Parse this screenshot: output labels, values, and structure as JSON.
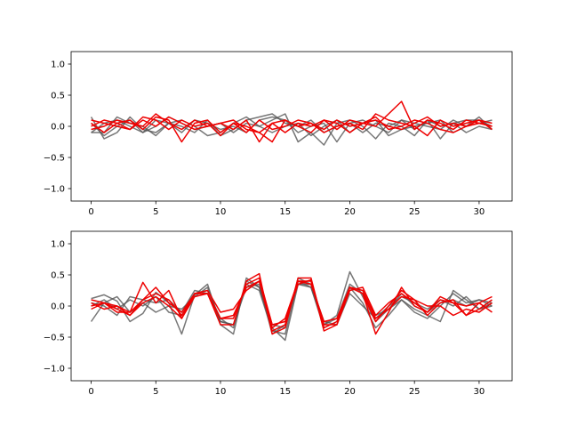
{
  "colors": {
    "gray": "#555555",
    "red": "#ee0000",
    "axes": "#000000",
    "background": "#ffffff"
  },
  "chart_data": [
    {
      "type": "line",
      "title": "",
      "xlabel": "",
      "ylabel": "",
      "xlim": [
        -1.55,
        32.55
      ],
      "ylim": [
        -1.2,
        1.2
      ],
      "xticks": [
        0,
        5,
        10,
        15,
        20,
        25,
        30
      ],
      "yticks": [
        -1.0,
        -0.5,
        0.0,
        0.5,
        1.0
      ],
      "grid": false,
      "legend": "none",
      "x": [
        0,
        1,
        2,
        3,
        4,
        5,
        6,
        7,
        8,
        9,
        10,
        11,
        12,
        13,
        14,
        15,
        16,
        17,
        18,
        19,
        20,
        21,
        22,
        23,
        24,
        25,
        26,
        27,
        28,
        29,
        30,
        31
      ],
      "series": [
        {
          "color": "gray",
          "values": [
            0.15,
            -0.2,
            -0.1,
            0.15,
            -0.05,
            -0.1,
            0.05,
            0.1,
            0.0,
            -0.15,
            -0.1,
            0.05,
            0.15,
            0.0,
            0.1,
            0.2,
            -0.25,
            -0.1,
            -0.3,
            0.05,
            0.1,
            0.0,
            -0.2,
            0.05,
            0.0,
            -0.15,
            0.1,
            -0.2,
            0.05,
            0.1,
            0.1,
            0.0
          ]
        },
        {
          "color": "gray",
          "values": [
            -0.1,
            0.05,
            0.1,
            0.0,
            -0.1,
            0.1,
            0.05,
            -0.1,
            0.1,
            0.05,
            -0.05,
            0.0,
            -0.1,
            0.1,
            0.15,
            0.1,
            -0.1,
            0.0,
            0.05,
            -0.25,
            0.05,
            0.1,
            0.0,
            -0.1,
            0.1,
            0.05,
            0.0,
            -0.05,
            0.1,
            0.0,
            0.15,
            -0.05
          ]
        },
        {
          "color": "gray",
          "values": [
            0.05,
            -0.15,
            0.0,
            0.1,
            -0.1,
            0.0,
            0.15,
            0.05,
            -0.05,
            0.0,
            0.05,
            -0.1,
            0.05,
            0.0,
            -0.1,
            0.0,
            0.05,
            -0.15,
            0.0,
            0.1,
            -0.1,
            0.05,
            0.1,
            -0.15,
            -0.05,
            0.0,
            0.05,
            0.1,
            -0.1,
            0.0,
            0.05,
            0.1
          ]
        },
        {
          "color": "gray",
          "values": [
            -0.1,
            -0.1,
            0.15,
            0.05,
            0.0,
            -0.15,
            0.05,
            0.0,
            -0.1,
            0.1,
            -0.15,
            -0.05,
            0.1,
            0.15,
            0.2,
            0.05,
            0.0,
            0.1,
            -0.1,
            0.0,
            0.05,
            -0.1,
            0.05,
            0.0,
            0.1,
            -0.05,
            0.1,
            0.0,
            0.05,
            -0.1,
            0.0,
            -0.05
          ]
        },
        {
          "color": "red",
          "values": [
            0.05,
            -0.1,
            0.05,
            0.1,
            -0.05,
            0.15,
            0.1,
            -0.25,
            0.05,
            0.1,
            -0.1,
            0.05,
            0.0,
            -0.1,
            0.05,
            0.1,
            0.0,
            -0.1,
            0.1,
            -0.05,
            0.1,
            0.05,
            0.0,
            0.2,
            0.4,
            -0.05,
            0.1,
            0.05,
            -0.05,
            0.1,
            0.05,
            0.0
          ]
        },
        {
          "color": "red",
          "values": [
            0.1,
            0.05,
            0.0,
            -0.05,
            0.15,
            0.1,
            -0.05,
            0.1,
            0.0,
            0.05,
            -0.15,
            0.05,
            -0.1,
            0.1,
            -0.05,
            0.0,
            0.1,
            0.05,
            -0.1,
            0.0,
            0.05,
            -0.05,
            0.2,
            0.1,
            0.05,
            0.0,
            -0.15,
            0.1,
            0.0,
            0.05,
            0.1,
            0.05
          ]
        },
        {
          "color": "red",
          "values": [
            0.0,
            0.1,
            0.05,
            -0.05,
            0.1,
            0.0,
            0.15,
            0.05,
            -0.05,
            0.0,
            0.05,
            0.1,
            -0.05,
            -0.1,
            -0.25,
            0.1,
            0.0,
            0.05,
            -0.05,
            0.1,
            0.0,
            0.05,
            0.1,
            0.0,
            -0.05,
            0.05,
            0.15,
            0.0,
            0.05,
            0.0,
            0.1,
            -0.05
          ]
        },
        {
          "color": "red",
          "values": [
            -0.05,
            0.0,
            0.1,
            0.05,
            0.0,
            0.2,
            0.05,
            -0.05,
            0.1,
            0.0,
            0.05,
            -0.05,
            0.1,
            -0.25,
            0.05,
            -0.1,
            0.05,
            0.0,
            0.1,
            0.05,
            -0.1,
            0.05,
            0.15,
            -0.05,
            0.0,
            0.1,
            0.05,
            -0.05,
            -0.1,
            0.0,
            0.05,
            0.0
          ]
        }
      ]
    },
    {
      "type": "line",
      "title": "",
      "xlabel": "",
      "ylabel": "",
      "xlim": [
        -1.55,
        32.55
      ],
      "ylim": [
        -1.2,
        1.2
      ],
      "xticks": [
        0,
        5,
        10,
        15,
        20,
        25,
        30
      ],
      "yticks": [
        -1.0,
        -0.5,
        0.0,
        0.5,
        1.0
      ],
      "grid": false,
      "legend": "none",
      "x": [
        0,
        1,
        2,
        3,
        4,
        5,
        6,
        7,
        8,
        9,
        10,
        11,
        12,
        13,
        14,
        15,
        16,
        17,
        18,
        19,
        20,
        21,
        22,
        23,
        24,
        25,
        26,
        27,
        28,
        29,
        30,
        31
      ],
      "series": [
        {
          "color": "gray",
          "values": [
            0.12,
            0.18,
            0.08,
            -0.25,
            -0.12,
            0.22,
            0.05,
            -0.45,
            0.18,
            0.35,
            -0.3,
            -0.45,
            0.45,
            0.3,
            -0.35,
            -0.55,
            0.35,
            0.3,
            -0.3,
            -0.15,
            0.55,
            0.15,
            -0.25,
            -0.05,
            0.1,
            -0.05,
            -0.15,
            -0.25,
            0.25,
            0.1,
            -0.05,
            0.0
          ]
        },
        {
          "color": "gray",
          "values": [
            -0.25,
            0.05,
            0.15,
            -0.1,
            0.05,
            -0.1,
            0.0,
            -0.05,
            0.15,
            0.3,
            -0.25,
            -0.3,
            0.35,
            0.25,
            -0.4,
            -0.45,
            0.4,
            0.3,
            -0.35,
            -0.25,
            0.3,
            0.05,
            -0.35,
            -0.15,
            0.1,
            -0.1,
            -0.2,
            0.0,
            0.2,
            0.05,
            0.1,
            0.05
          ]
        },
        {
          "color": "gray",
          "values": [
            0.0,
            0.1,
            -0.05,
            0.1,
            0.0,
            0.15,
            -0.1,
            -0.15,
            0.2,
            0.25,
            -0.2,
            -0.35,
            0.4,
            0.3,
            -0.3,
            -0.35,
            0.45,
            0.35,
            -0.25,
            -0.3,
            0.2,
            0.0,
            -0.2,
            0.0,
            0.15,
            0.05,
            -0.05,
            0.1,
            0.0,
            0.15,
            -0.05,
            0.05
          ]
        },
        {
          "color": "gray",
          "values": [
            0.05,
            0.0,
            -0.15,
            0.15,
            0.1,
            0.05,
            0.1,
            -0.1,
            0.25,
            0.2,
            -0.25,
            -0.3,
            0.3,
            0.35,
            -0.45,
            -0.3,
            0.35,
            0.35,
            -0.3,
            -0.2,
            0.35,
            0.2,
            -0.15,
            -0.05,
            0.2,
            0.0,
            -0.1,
            0.05,
            0.1,
            0.0,
            0.1,
            0.0
          ]
        },
        {
          "color": "red",
          "values": [
            0.05,
            -0.05,
            0.0,
            -0.1,
            0.38,
            0.05,
            0.25,
            -0.2,
            0.2,
            0.2,
            -0.3,
            -0.3,
            0.4,
            0.52,
            -0.45,
            -0.35,
            0.45,
            0.45,
            -0.35,
            -0.25,
            0.3,
            0.2,
            -0.45,
            -0.1,
            0.3,
            0.0,
            -0.1,
            0.15,
            0.05,
            -0.15,
            0.05,
            0.15
          ]
        },
        {
          "color": "red",
          "values": [
            -0.05,
            0.05,
            0.0,
            -0.15,
            0.1,
            0.3,
            0.05,
            -0.1,
            0.2,
            0.2,
            -0.2,
            -0.2,
            0.35,
            0.45,
            -0.3,
            -0.25,
            0.35,
            0.42,
            -0.4,
            -0.3,
            0.25,
            0.3,
            -0.15,
            0.05,
            0.2,
            0.05,
            -0.1,
            0.1,
            0.05,
            0.0,
            0.05,
            -0.1
          ]
        },
        {
          "color": "red",
          "values": [
            0.0,
            0.05,
            -0.05,
            -0.15,
            0.05,
            0.15,
            0.0,
            -0.2,
            0.15,
            0.2,
            -0.2,
            -0.15,
            0.3,
            0.4,
            -0.4,
            -0.3,
            0.4,
            0.4,
            -0.3,
            -0.3,
            0.3,
            0.2,
            -0.25,
            0.0,
            0.25,
            0.1,
            -0.15,
            0.05,
            0.1,
            -0.15,
            -0.05,
            0.1
          ]
        },
        {
          "color": "red",
          "values": [
            0.1,
            0.05,
            -0.1,
            -0.1,
            0.1,
            0.2,
            0.1,
            -0.15,
            0.2,
            0.25,
            -0.1,
            -0.05,
            0.25,
            0.4,
            -0.35,
            -0.2,
            0.4,
            0.35,
            -0.25,
            -0.2,
            0.3,
            0.25,
            -0.2,
            -0.05,
            0.15,
            0.1,
            0.0,
            0.0,
            -0.15,
            -0.05,
            -0.1,
            0.05
          ]
        }
      ]
    }
  ]
}
